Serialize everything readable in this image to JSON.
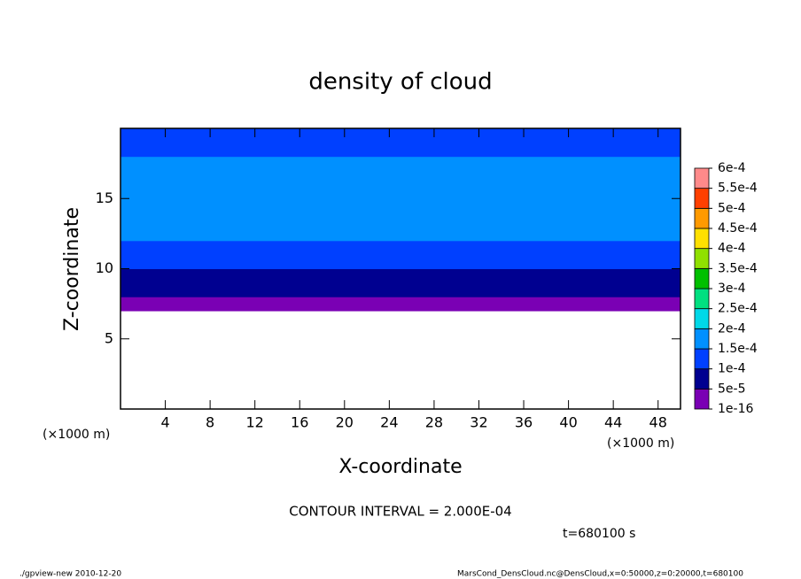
{
  "chart_data": {
    "type": "contour",
    "title": "density of cloud",
    "xlabel": "X-coordinate",
    "ylabel": "Z-coordinate",
    "x_unit_left": "(×1000 m)",
    "x_unit_right": "(×1000 m)",
    "xlim": [
      0,
      50
    ],
    "xticks": [
      4,
      8,
      12,
      16,
      20,
      24,
      28,
      32,
      36,
      40,
      44,
      48
    ],
    "ylim": [
      0,
      20
    ],
    "yticks": [
      5,
      10,
      15
    ],
    "field": {
      "z_edges": [
        7,
        7.5,
        8,
        8.5,
        9,
        9.5,
        10,
        11,
        12,
        13,
        14,
        15,
        16,
        17,
        18,
        19,
        20
      ],
      "values": [
        3e-05,
        4e-05,
        6e-05,
        7e-05,
        8e-05,
        9e-05,
        0.00011,
        0.00013,
        0.00016,
        0.00017,
        0.00017,
        0.00017,
        0.00017,
        0.00016,
        0.00014,
        0.00013
      ]
    },
    "levels": [
      {
        "value": 1e-16,
        "label": "1e-16"
      },
      {
        "value": 5e-05,
        "label": "5e-5"
      },
      {
        "value": 0.0001,
        "label": "1e-4"
      },
      {
        "value": 0.00015,
        "label": "1.5e-4"
      },
      {
        "value": 0.0002,
        "label": "2e-4"
      },
      {
        "value": 0.00025,
        "label": "2.5e-4"
      },
      {
        "value": 0.0003,
        "label": "3e-4"
      },
      {
        "value": 0.00035,
        "label": "3.5e-4"
      },
      {
        "value": 0.0004,
        "label": "4e-4"
      },
      {
        "value": 0.00045,
        "label": "4.5e-4"
      },
      {
        "value": 0.0005,
        "label": "5e-4"
      },
      {
        "value": 0.00055,
        "label": "5.5e-4"
      },
      {
        "value": 0.0006,
        "label": "6e-4"
      }
    ],
    "colors": [
      "#7a00b4",
      "#000090",
      "#0040ff",
      "#0090ff",
      "#00d8e8",
      "#00e080",
      "#00c000",
      "#90e000",
      "#ffe000",
      "#ff9a00",
      "#ff4000",
      "#ff8a8a"
    ],
    "contour_interval": "CONTOUR INTERVAL = 2.000E-04",
    "time_label": "t=680100 s",
    "footer_left": "./gpview-new  2010-12-20",
    "footer_right": "MarsCond_DensCloud.nc@DensCloud,x=0:50000,z=0:20000,t=680100"
  }
}
